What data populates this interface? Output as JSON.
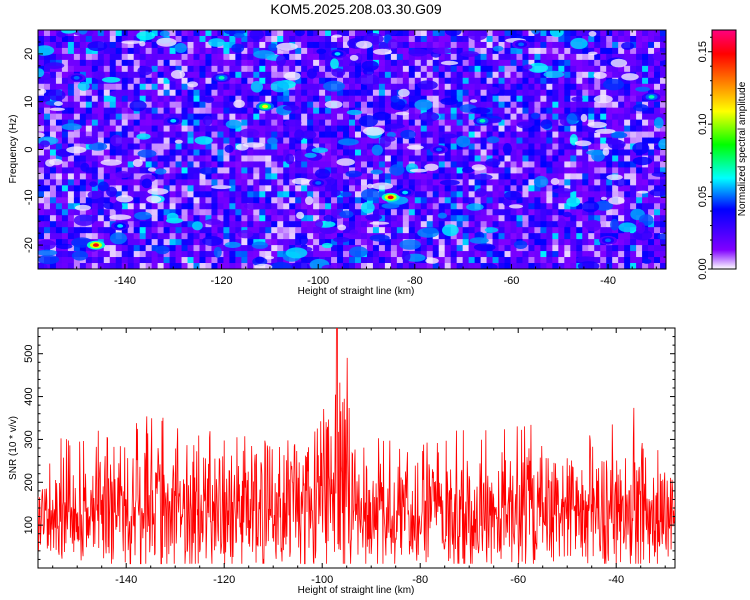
{
  "chart_data": [
    {
      "type": "heatmap",
      "title": "KOM5.2025.208.03.30.G09",
      "xlabel": "Height of straight line (km)",
      "ylabel": "Frequency (Hz)",
      "xlim": [
        -158,
        -28
      ],
      "ylim": [
        -25,
        25
      ],
      "xticks": [
        -140,
        -120,
        -100,
        -80,
        -60,
        -40
      ],
      "yticks": [
        -20,
        -10,
        0,
        10,
        20
      ],
      "colorbar": {
        "label": "Normalized spectral amplitude",
        "range": [
          0.0,
          0.165
        ],
        "ticks": [
          "0.00",
          "0.05",
          "0.10",
          "0.15"
        ],
        "tick_values": [
          0.0,
          0.05,
          0.1,
          0.15
        ],
        "colors": [
          "#ffffff",
          "#8000ff",
          "#0000ff",
          "#00ffff",
          "#00ff00",
          "#ffff00",
          "#ff8000",
          "#ff0000",
          "#ff0080"
        ]
      },
      "hotspots": [
        {
          "x": -146,
          "y": -20,
          "value": 0.15
        },
        {
          "x": -85,
          "y": -10,
          "value": 0.15
        },
        {
          "x": -111,
          "y": 9,
          "value": 0.11
        },
        {
          "x": -66,
          "y": 6,
          "value": 0.07
        },
        {
          "x": -120,
          "y": 15,
          "value": 0.07
        },
        {
          "x": -82,
          "y": -9,
          "value": 0.06
        },
        {
          "x": -141,
          "y": -16,
          "value": 0.06
        },
        {
          "x": -31,
          "y": 11,
          "value": 0.07
        },
        {
          "x": -96,
          "y": 20,
          "value": 0.06
        },
        {
          "x": -58,
          "y": 22,
          "value": 0.05
        },
        {
          "x": -130,
          "y": 6,
          "value": 0.06
        },
        {
          "x": -100,
          "y": -7,
          "value": 0.05
        },
        {
          "x": -150,
          "y": 15,
          "value": 0.05
        },
        {
          "x": -40,
          "y": -19,
          "value": 0.05
        },
        {
          "x": -75,
          "y": 0,
          "value": 0.05
        }
      ]
    },
    {
      "type": "line",
      "xlabel": "Height of straight line (km)",
      "ylabel": "SNR (10 * v/v)",
      "xlim": [
        -158,
        -28
      ],
      "ylim": [
        0,
        560
      ],
      "xticks": [
        -140,
        -120,
        -100,
        -80,
        -60,
        -40
      ],
      "yticks": [
        100,
        200,
        300,
        400,
        500
      ],
      "series": [
        {
          "color": "#ff0000",
          "baseline_mean": 135,
          "peak_x": -97,
          "peak_value": 560,
          "x_peaks": [
            [
              -158,
              250
            ],
            [
              -152,
              320
            ],
            [
              -146,
              330
            ],
            [
              -141,
              320
            ],
            [
              -136,
              360
            ],
            [
              -130,
              345
            ],
            [
              -124,
              320
            ],
            [
              -118,
              320
            ],
            [
              -112,
              300
            ],
            [
              -106,
              300
            ],
            [
              -100,
              420
            ],
            [
              -97,
              560
            ],
            [
              -95,
              500
            ],
            [
              -93,
              360
            ],
            [
              -88,
              310
            ],
            [
              -82,
              290
            ],
            [
              -76,
              300
            ],
            [
              -70,
              360
            ],
            [
              -64,
              320
            ],
            [
              -58,
              340
            ],
            [
              -52,
              300
            ],
            [
              -46,
              310
            ],
            [
              -41,
              350
            ],
            [
              -37,
              390
            ],
            [
              -32,
              310
            ],
            [
              -28,
              220
            ]
          ]
        }
      ]
    }
  ]
}
